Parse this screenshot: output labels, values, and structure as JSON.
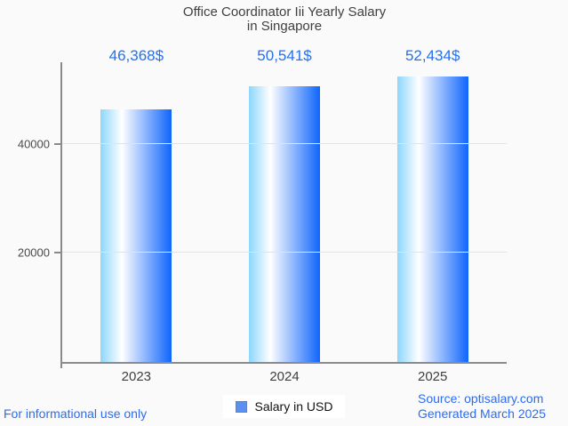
{
  "header": {
    "title_line1": "Office Coordinator Iii Yearly Salary",
    "title_line2": "in Singapore"
  },
  "chart_data": {
    "type": "bar",
    "title": "Office Coordinator Iii Yearly Salary in Singapore",
    "categories": [
      "2023",
      "2024",
      "2025"
    ],
    "values": [
      46368,
      50541,
      52434
    ],
    "value_labels": [
      "46,368$",
      "50,541$",
      "52,434$"
    ],
    "xlabel": "",
    "ylabel": "",
    "ylim": [
      0,
      55000
    ],
    "yticks": [
      20000,
      40000
    ],
    "grid": "horizontal",
    "legend_position": "bottom",
    "legend_entries": [
      "Salary in USD"
    ]
  },
  "legend": {
    "label": "Salary in USD"
  },
  "footer": {
    "left_note": "For informational use only",
    "source_line": "Source: optisalary.com",
    "generated_line": "Generated March 2025"
  },
  "colors": {
    "background": "#fafafa",
    "accent_value_blue": "#2171f2",
    "footer_link_blue": "#2a6cf5",
    "axis_gray": "#8a8a8a",
    "grid_gray": "#e3e3e3",
    "bar_gradient_left": "#8dd6fc",
    "bar_gradient_mid": "#ffffff",
    "bar_gradient_right": "#0f65fc",
    "legend_swatch": "#5b8ff0"
  }
}
